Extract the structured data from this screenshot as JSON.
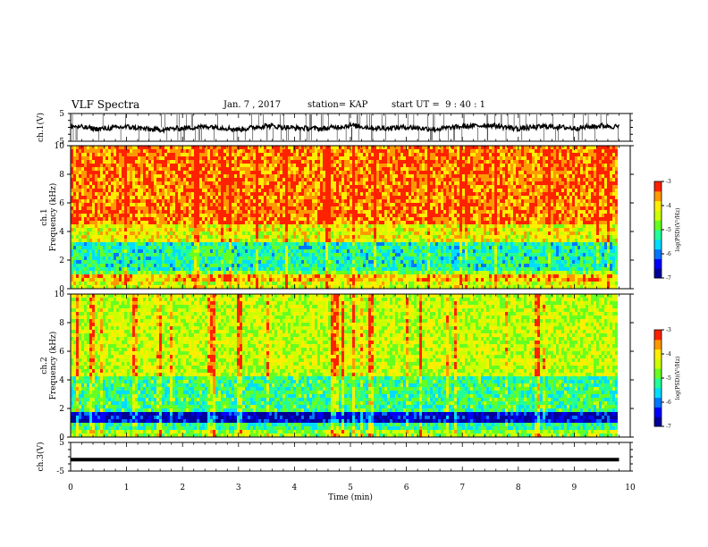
{
  "header": {
    "title": "VLF Spectra",
    "date": "Jan. 7 , 2017",
    "station": "station= KAP",
    "start_ut": "start UT =  9 : 40 : 1"
  },
  "colors": {
    "spectrogram": [
      "#000099",
      "#0000ff",
      "#0077ff",
      "#00ddff",
      "#22ff99",
      "#66ff22",
      "#ccff00",
      "#ffee00",
      "#ff9900",
      "#ff2200",
      "#ffffff"
    ],
    "waveform": "#000000"
  },
  "chart_data": [
    {
      "type": "line",
      "panel": "ch1-waveform",
      "ylabel": "ch.1(V)",
      "yticks": [
        "5",
        "-5"
      ],
      "ylim": [
        -5,
        5
      ],
      "xlim": [
        0,
        10
      ],
      "x": [
        0,
        0.5,
        1,
        1.5,
        2,
        2.5,
        3,
        3.5,
        4,
        4.5,
        5,
        5.5,
        6,
        6.5,
        7,
        7.5,
        8,
        8.5,
        9,
        9.5,
        9.8
      ],
      "y": [
        0.5,
        -0.6,
        0.2,
        -0.9,
        -0.3,
        0.4,
        -0.8,
        0.6,
        -0.2,
        -0.5,
        0.7,
        -0.4,
        0.1,
        -0.7,
        0.3,
        0.8,
        -0.5,
        0.4,
        -0.3,
        0.6,
        0.2
      ]
    },
    {
      "type": "heatmap",
      "panel": "ch1-spectrogram",
      "ylabel": "ch.1 Frequency (kHz)",
      "yticks": [
        "0",
        "2",
        "4",
        "6",
        "8",
        "10"
      ],
      "ylim": [
        0,
        10
      ],
      "xlim": [
        0,
        10
      ],
      "colorbar": {
        "label": "log(PSD)(V²/Hz)",
        "ticks": [
          "-3",
          "-4",
          "-5",
          "-6",
          "-7"
        ],
        "range": [
          -7,
          -3
        ]
      },
      "bands_khz": [
        {
          "from": 0,
          "to": 0.5,
          "level": -4.3
        },
        {
          "from": 0.5,
          "to": 0.9,
          "level": -3.8
        },
        {
          "from": 0.9,
          "to": 1.2,
          "level": -4.8
        },
        {
          "from": 1.2,
          "to": 3.3,
          "level": -5.3
        },
        {
          "from": 3.3,
          "to": 4.5,
          "level": -4.2
        },
        {
          "from": 4.5,
          "to": 10,
          "level": -3.5
        }
      ]
    },
    {
      "type": "heatmap",
      "panel": "ch2-spectrogram",
      "ylabel": "ch.2 Frequency (kHz)",
      "yticks": [
        "0",
        "2",
        "4",
        "6",
        "8",
        "10"
      ],
      "ylim": [
        0,
        10
      ],
      "xlim": [
        0,
        10
      ],
      "colorbar": {
        "label": "log(PSD)(V²/Hz)",
        "ticks": [
          "-3",
          "-4",
          "-5",
          "-6",
          "-7"
        ],
        "range": [
          -7,
          -3
        ]
      },
      "bands_khz": [
        {
          "from": 0,
          "to": 0.6,
          "level": -4.6
        },
        {
          "from": 0.6,
          "to": 1.1,
          "level": -5.2
        },
        {
          "from": 1.1,
          "to": 1.8,
          "level": -6.6
        },
        {
          "from": 1.8,
          "to": 4.2,
          "level": -5.1
        },
        {
          "from": 4.2,
          "to": 10,
          "level": -4.4
        }
      ]
    },
    {
      "type": "line",
      "panel": "ch3-waveform",
      "ylabel": "ch.3(V)",
      "yticks": [
        "5",
        "-5"
      ],
      "ylim": [
        -5,
        5
      ],
      "xlim": [
        0,
        10
      ],
      "x": [
        0,
        9.8
      ],
      "y": [
        -1,
        -1
      ]
    }
  ],
  "xaxis": {
    "label": "Time (min)",
    "ticks": [
      "0",
      "1",
      "2",
      "3",
      "4",
      "5",
      "6",
      "7",
      "8",
      "9",
      "10"
    ]
  }
}
